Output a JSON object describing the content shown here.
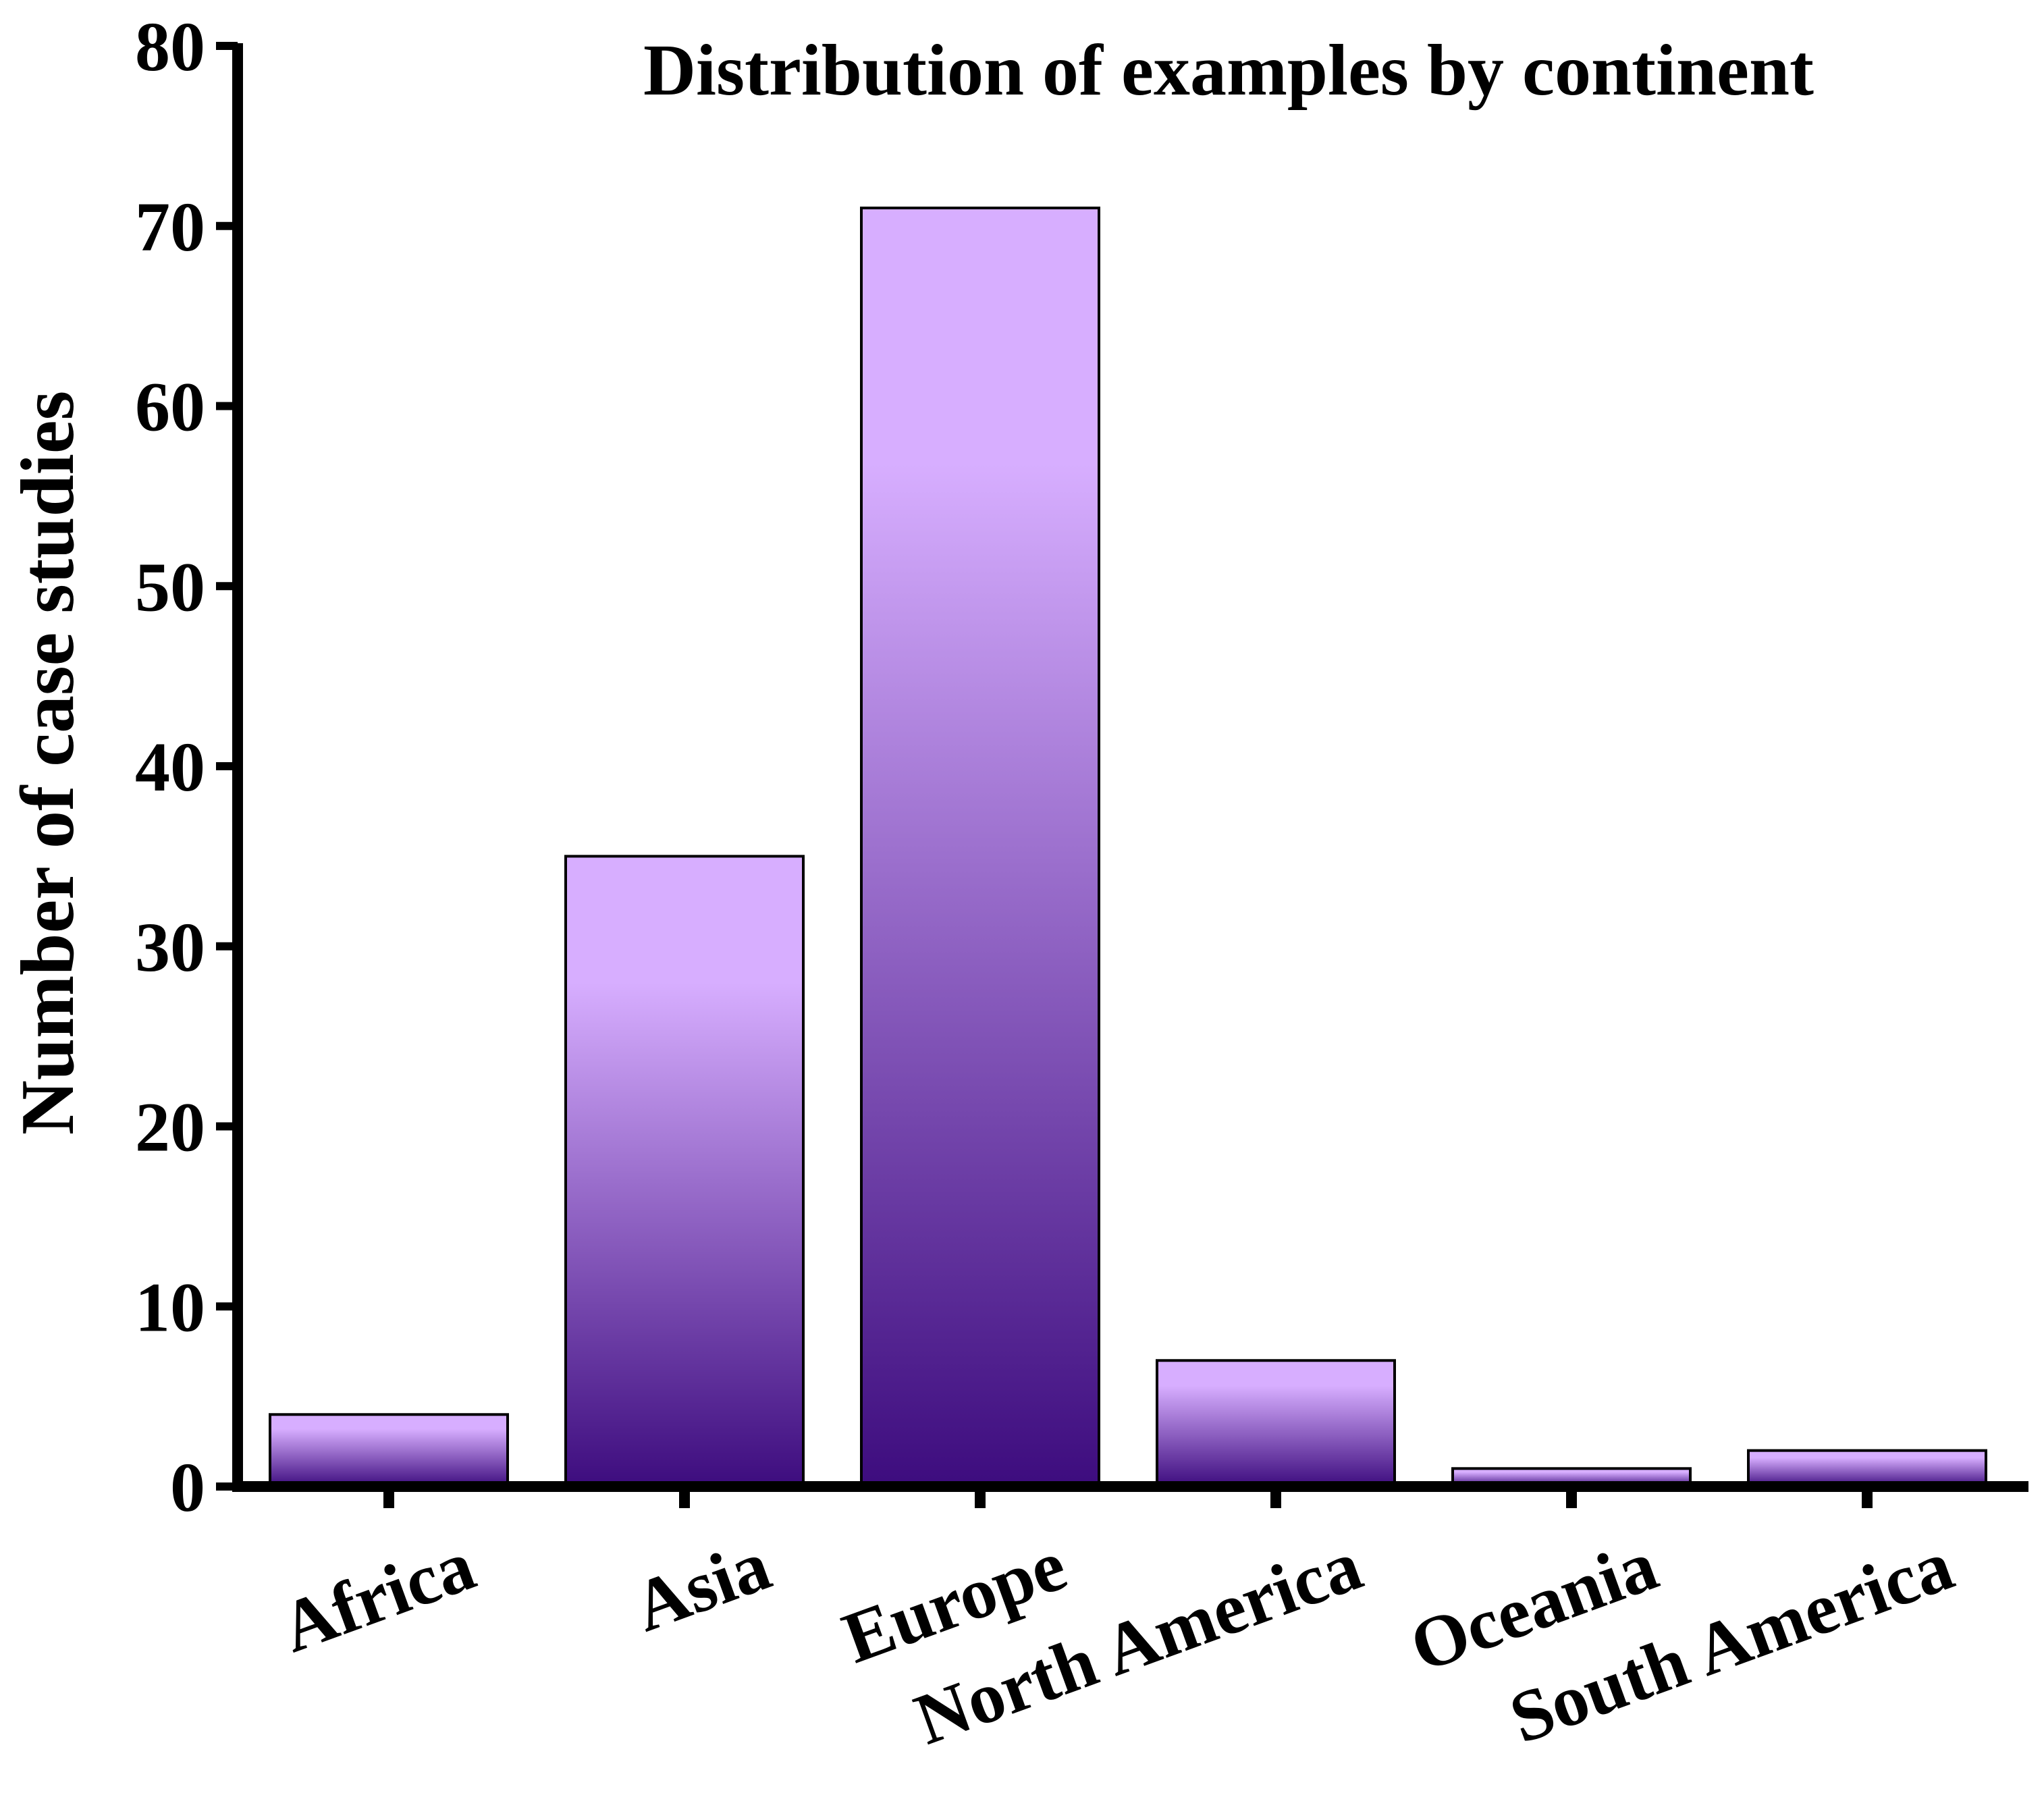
{
  "chart_data": {
    "type": "bar",
    "title": "Distribution of examples by continent",
    "xlabel": "",
    "ylabel": "Number of case studies",
    "categories": [
      "Africa",
      "Asia",
      "Europe",
      "North America",
      "Oceania",
      "South America"
    ],
    "values": [
      4,
      35,
      71,
      7,
      1,
      2
    ],
    "ylim": [
      0,
      80
    ],
    "yticks": [
      "0",
      "10",
      "20",
      "30",
      "40",
      "50",
      "60",
      "70",
      "80"
    ],
    "grid": false,
    "legend": "none",
    "colors": {
      "bar_top": "#D7AEFF",
      "bar_bottom": "#3D0C7E",
      "bar_outline": "#000000",
      "axis": "#000000"
    }
  }
}
